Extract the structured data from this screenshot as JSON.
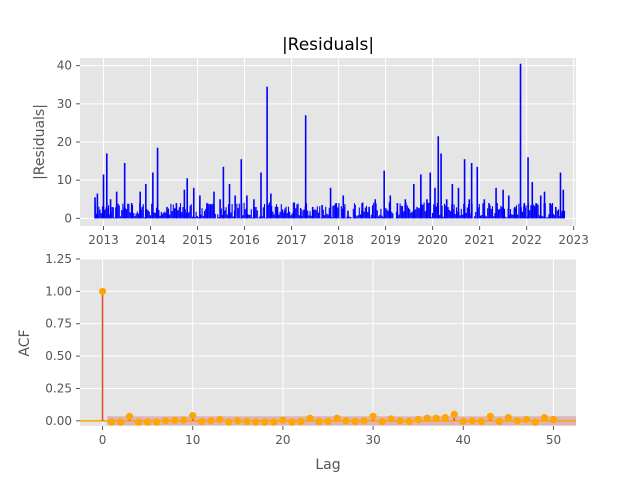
{
  "chart_data": [
    {
      "type": "line",
      "title": "|Residuals|",
      "xlabel": "",
      "ylabel": "|Residuals|",
      "x_ticks": [
        "2013",
        "2014",
        "2015",
        "2016",
        "2017",
        "2018",
        "2019",
        "2020",
        "2021",
        "2022",
        "2023"
      ],
      "y_ticks": [
        "0",
        "10",
        "20",
        "30",
        "40"
      ],
      "xlim": [
        2012.5,
        2023.05
      ],
      "ylim": [
        -2,
        42
      ],
      "grid": true,
      "series_color": "#0000ff",
      "peaks": [
        {
          "x": 2012.82,
          "y": 5.5
        },
        {
          "x": 2012.87,
          "y": 6.5
        },
        {
          "x": 2013.0,
          "y": 11.5
        },
        {
          "x": 2013.07,
          "y": 17
        },
        {
          "x": 2013.15,
          "y": 5
        },
        {
          "x": 2013.28,
          "y": 7
        },
        {
          "x": 2013.45,
          "y": 14.5
        },
        {
          "x": 2013.6,
          "y": 4
        },
        {
          "x": 2013.78,
          "y": 7
        },
        {
          "x": 2013.9,
          "y": 9
        },
        {
          "x": 2014.05,
          "y": 12
        },
        {
          "x": 2014.15,
          "y": 18.5
        },
        {
          "x": 2014.35,
          "y": 3
        },
        {
          "x": 2014.55,
          "y": 4
        },
        {
          "x": 2014.72,
          "y": 7.5
        },
        {
          "x": 2014.78,
          "y": 10.5
        },
        {
          "x": 2014.92,
          "y": 8
        },
        {
          "x": 2015.05,
          "y": 6
        },
        {
          "x": 2015.2,
          "y": 4
        },
        {
          "x": 2015.35,
          "y": 7
        },
        {
          "x": 2015.48,
          "y": 5
        },
        {
          "x": 2015.55,
          "y": 13.5
        },
        {
          "x": 2015.68,
          "y": 9
        },
        {
          "x": 2015.8,
          "y": 6
        },
        {
          "x": 2015.93,
          "y": 15.5
        },
        {
          "x": 2016.05,
          "y": 6
        },
        {
          "x": 2016.2,
          "y": 5
        },
        {
          "x": 2016.35,
          "y": 12
        },
        {
          "x": 2016.48,
          "y": 34.5
        },
        {
          "x": 2016.56,
          "y": 6.5
        },
        {
          "x": 2016.7,
          "y": 3
        },
        {
          "x": 2016.85,
          "y": 2
        },
        {
          "x": 2017.05,
          "y": 2
        },
        {
          "x": 2017.2,
          "y": 2.5
        },
        {
          "x": 2017.3,
          "y": 27
        },
        {
          "x": 2017.45,
          "y": 3
        },
        {
          "x": 2017.65,
          "y": 3.5
        },
        {
          "x": 2017.83,
          "y": 8
        },
        {
          "x": 2017.95,
          "y": 4
        },
        {
          "x": 2018.1,
          "y": 6
        },
        {
          "x": 2018.2,
          "y": 2
        },
        {
          "x": 2018.35,
          "y": 3.5
        },
        {
          "x": 2018.5,
          "y": 4
        },
        {
          "x": 2018.65,
          "y": 3
        },
        {
          "x": 2018.78,
          "y": 5
        },
        {
          "x": 2018.97,
          "y": 12.5
        },
        {
          "x": 2019.1,
          "y": 6
        },
        {
          "x": 2019.25,
          "y": 4
        },
        {
          "x": 2019.42,
          "y": 5
        },
        {
          "x": 2019.6,
          "y": 9
        },
        {
          "x": 2019.75,
          "y": 11.5
        },
        {
          "x": 2019.88,
          "y": 5
        },
        {
          "x": 2019.95,
          "y": 12
        },
        {
          "x": 2020.05,
          "y": 8
        },
        {
          "x": 2020.12,
          "y": 21.5
        },
        {
          "x": 2020.18,
          "y": 17
        },
        {
          "x": 2020.3,
          "y": 5
        },
        {
          "x": 2020.42,
          "y": 9
        },
        {
          "x": 2020.55,
          "y": 8
        },
        {
          "x": 2020.68,
          "y": 15.5
        },
        {
          "x": 2020.78,
          "y": 5
        },
        {
          "x": 2020.83,
          "y": 14.5
        },
        {
          "x": 2020.95,
          "y": 13.5
        },
        {
          "x": 2021.1,
          "y": 5
        },
        {
          "x": 2021.2,
          "y": 4
        },
        {
          "x": 2021.35,
          "y": 8
        },
        {
          "x": 2021.5,
          "y": 7.5
        },
        {
          "x": 2021.62,
          "y": 6
        },
        {
          "x": 2021.75,
          "y": 3
        },
        {
          "x": 2021.87,
          "y": 40.5
        },
        {
          "x": 2021.95,
          "y": 4
        },
        {
          "x": 2022.03,
          "y": 16
        },
        {
          "x": 2022.12,
          "y": 9.5
        },
        {
          "x": 2022.2,
          "y": 4
        },
        {
          "x": 2022.3,
          "y": 6
        },
        {
          "x": 2022.38,
          "y": 7
        },
        {
          "x": 2022.5,
          "y": 4
        },
        {
          "x": 2022.62,
          "y": 3
        },
        {
          "x": 2022.72,
          "y": 12
        },
        {
          "x": 2022.78,
          "y": 7.5
        },
        {
          "x": 2022.8,
          "y": 2
        }
      ],
      "baseline": {
        "x_start": 2012.8,
        "x_end": 2022.8,
        "y": 1
      }
    },
    {
      "type": "stem",
      "title": "",
      "xlabel": "Lag",
      "ylabel": "ACF",
      "x_ticks": [
        "0",
        "10",
        "20",
        "30",
        "40",
        "50"
      ],
      "y_ticks": [
        "0.00",
        "0.25",
        "0.50",
        "0.75",
        "1.00",
        "1.25"
      ],
      "xlim": [
        -2.5,
        52.5
      ],
      "ylim": [
        -0.04,
        1.25
      ],
      "grid": true,
      "confidence_band": 0.035,
      "stem_color": "#e8472b",
      "marker_color": "#ffa500",
      "band_color": "#d9a3a7",
      "zero_line_color": "#ffa500",
      "lags": [
        0,
        1,
        2,
        3,
        4,
        5,
        6,
        7,
        8,
        9,
        10,
        11,
        12,
        13,
        14,
        15,
        16,
        17,
        18,
        19,
        20,
        21,
        22,
        23,
        24,
        25,
        26,
        27,
        28,
        29,
        30,
        31,
        32,
        33,
        34,
        35,
        36,
        37,
        38,
        39,
        40,
        41,
        42,
        43,
        44,
        45,
        46,
        47,
        48,
        49,
        50
      ],
      "values": [
        1.0,
        -0.01,
        -0.01,
        0.035,
        -0.01,
        -0.01,
        -0.01,
        0.0,
        0.005,
        0.005,
        0.04,
        -0.005,
        0.0,
        0.01,
        -0.01,
        0.0,
        -0.005,
        -0.01,
        -0.01,
        -0.01,
        0.005,
        -0.01,
        -0.005,
        0.02,
        -0.005,
        -0.005,
        0.02,
        0.0,
        -0.005,
        0.0,
        0.035,
        -0.005,
        0.015,
        0.0,
        -0.005,
        0.01,
        0.02,
        0.02,
        0.025,
        0.05,
        -0.005,
        0.0,
        -0.005,
        0.035,
        -0.005,
        0.025,
        0.0,
        0.01,
        -0.01,
        0.025,
        0.01
      ]
    }
  ]
}
